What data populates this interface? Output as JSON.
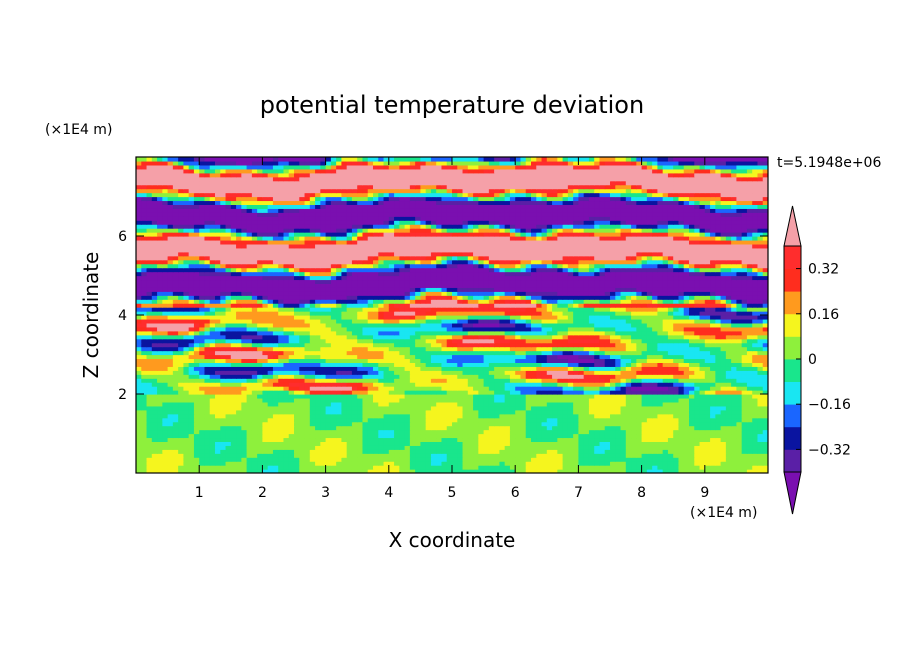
{
  "chart_data": {
    "type": "heatmap",
    "title": "potential temperature deviation",
    "xlabel": "X coordinate",
    "ylabel": "Z coordinate",
    "x_unit": "(×1E4 m)",
    "y_unit": "(×1E4 m)",
    "time_label": "t=5.1948e+06",
    "xlim": [
      0,
      10
    ],
    "ylim": [
      0,
      8
    ],
    "x_ticks": [
      1,
      2,
      3,
      4,
      5,
      6,
      7,
      8,
      9
    ],
    "y_ticks": [
      2,
      4,
      6
    ],
    "colorbar": {
      "levels": [
        -0.4,
        -0.32,
        -0.24,
        -0.16,
        -0.08,
        0,
        0.08,
        0.16,
        0.24,
        0.32,
        0.4
      ],
      "labels": [
        {
          "value": 0.32,
          "text": "0.32"
        },
        {
          "value": 0.16,
          "text": "0.16"
        },
        {
          "value": 0,
          "text": "0"
        },
        {
          "value": -0.16,
          "text": "−0.16"
        },
        {
          "value": -0.32,
          "text": "−0.32"
        }
      ],
      "colors_low_to_high": [
        "#7a0fb0",
        "#5a1fa6",
        "#0a14a0",
        "#1a66ff",
        "#19e6f2",
        "#19e68c",
        "#8ef03c",
        "#f5f51e",
        "#ff9a1e",
        "#ff2d1e",
        "#ff2d2d",
        "#f5a0a8"
      ]
    },
    "regions": [
      {
        "z_range": [
          0,
          2
        ],
        "description_level": "near 0 (-0.08 to 0.08)",
        "dominant_values": [
          0,
          0.08
        ]
      },
      {
        "z_range": [
          2,
          4.2
        ],
        "description_level": "mixed bands",
        "dominant_values": [
          -0.32,
          -0.16,
          0,
          0.16,
          0.32
        ]
      },
      {
        "z_range": [
          4.2,
          8
        ],
        "description_level": "alternating layers",
        "dominant_values": [
          -0.4,
          0.4
        ]
      }
    ]
  }
}
